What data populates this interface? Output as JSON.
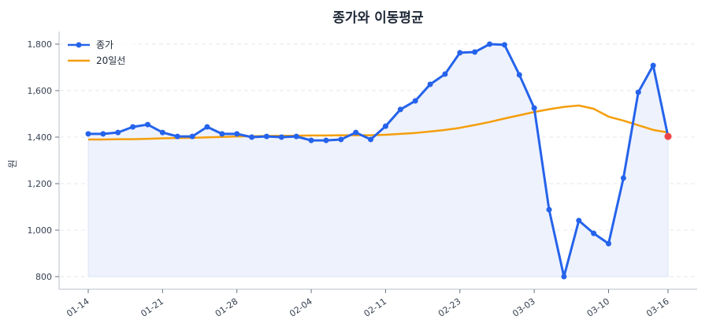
{
  "chart_data": {
    "type": "line",
    "title": "종가와 이동평균",
    "xlabel": "",
    "ylabel": "원",
    "ylim": [
      780,
      1850
    ],
    "yticks": [
      800,
      1000,
      1200,
      1400,
      1600,
      1800
    ],
    "ytick_labels": [
      "800",
      "1,000",
      "1,200",
      "1,400",
      "1,600",
      "1,800"
    ],
    "xtick_labels": [
      "01-14",
      "01-21",
      "01-28",
      "02-04",
      "02-11",
      "02-23",
      "03-03",
      "03-10",
      "03-16"
    ],
    "xtick_indices": [
      0,
      5,
      10,
      15,
      20,
      25,
      30,
      35,
      39
    ],
    "grid": true,
    "legend_position": "upper left",
    "series": [
      {
        "name": "종가",
        "color": "#2563eb",
        "marker": "circle",
        "fill": true,
        "fill_color": "#eef2fc",
        "last_point_color": "#ef4444",
        "values": [
          1414,
          1414,
          1420,
          1444,
          1454,
          1420,
          1403,
          1403,
          1444,
          1414,
          1414,
          1400,
          1403,
          1400,
          1403,
          1386,
          1386,
          1390,
          1420,
          1390,
          1447,
          1519,
          1556,
          1627,
          1671,
          1763,
          1766,
          1800,
          1797,
          1668,
          1525,
          1088,
          800,
          1041,
          986,
          942,
          1224,
          1593,
          1708,
          1403
        ]
      },
      {
        "name": "20일선",
        "color": "#f59e0b",
        "marker": "none",
        "values": [
          1390,
          1390,
          1391,
          1391,
          1393,
          1395,
          1396,
          1397,
          1399,
          1401,
          1403,
          1404,
          1405,
          1406,
          1406,
          1407,
          1407,
          1408,
          1408,
          1408,
          1410,
          1414,
          1418,
          1424,
          1431,
          1440,
          1452,
          1465,
          1480,
          1494,
          1508,
          1520,
          1530,
          1536,
          1522,
          1488,
          1471,
          1451,
          1431,
          1420
        ]
      }
    ]
  },
  "legend": {
    "items": [
      {
        "label": "종가"
      },
      {
        "label": "20일선"
      }
    ]
  }
}
